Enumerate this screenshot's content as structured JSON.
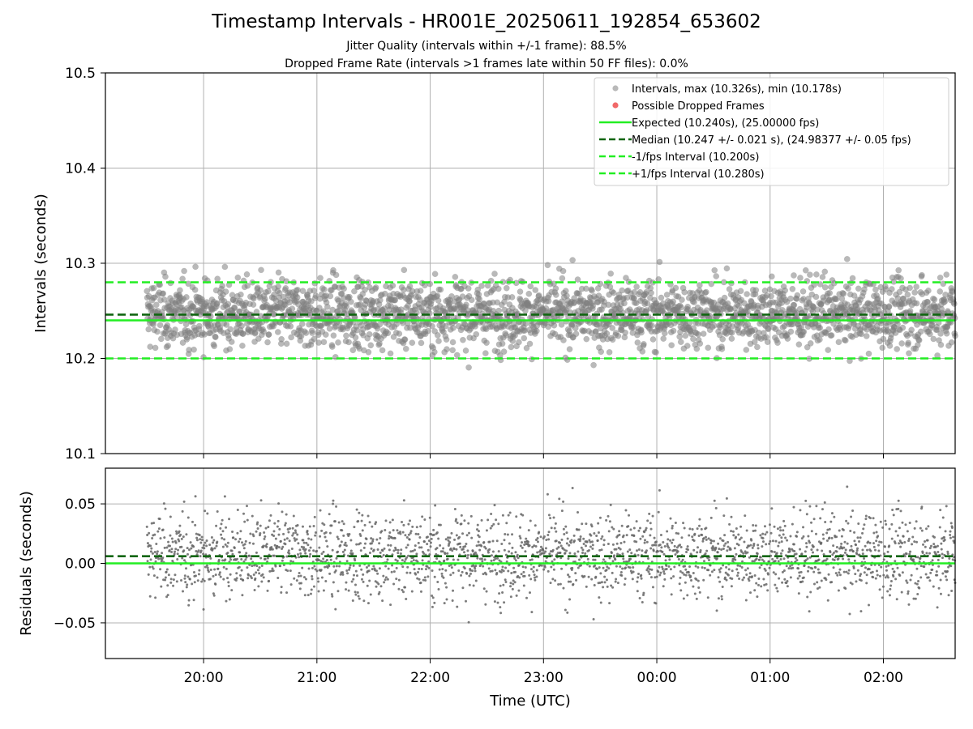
{
  "figure": {
    "title": "Timestamp Intervals - HR001E_20250611_192854_653602",
    "subtitle_1": "Jitter Quality (intervals within +/-1 frame): 88.5%",
    "subtitle_2": "Dropped Frame Rate (intervals >1 frames late within 50 FF files): 0.0%"
  },
  "colors": {
    "points": "#808080",
    "dropped": "#ee4444",
    "expected": "#22ee22",
    "median": "#116611",
    "bounds": "#22ee22",
    "grid": "#b0b0b0"
  },
  "chart_data": [
    {
      "type": "scatter",
      "panel": "intervals",
      "xlabel": "",
      "ylabel": "Intervals (seconds)",
      "xlim": [
        "19:08",
        "02:38"
      ],
      "ylim": [
        10.1,
        10.5
      ],
      "yticks": [
        10.1,
        10.2,
        10.3,
        10.4,
        10.5
      ],
      "ytick_labels": [
        "10.1",
        "10.2",
        "10.3",
        "10.4",
        "10.5"
      ],
      "xticks": [
        "20:00",
        "21:00",
        "22:00",
        "23:00",
        "00:00",
        "01:00",
        "02:00"
      ],
      "grid": true,
      "legend_position": "top-right",
      "legend": [
        "Intervals, max (10.326s), min (10.178s)",
        "Possible Dropped Frames",
        "Expected (10.240s), (25.00000 fps)",
        "Median (10.247 +/- 0.021 s), (24.98377 +/- 0.05 fps)",
        "-1/fps Interval (10.200s)",
        "+1/fps Interval (10.280s)"
      ],
      "series": [
        {
          "name": "Intervals, max (10.326s), min (10.178s)",
          "kind": "points",
          "x_start": "19:30",
          "x_end": "02:38",
          "approx_count": 2500,
          "center": 10.247,
          "spread": 0.021,
          "max": 10.326,
          "min": 10.178
        },
        {
          "name": "Possible Dropped Frames",
          "kind": "points",
          "count": 0
        },
        {
          "name": "Expected (10.240s), (25.00000 fps)",
          "kind": "hline",
          "y": 10.24
        },
        {
          "name": "Median (10.247 +/- 0.021 s), (24.98377 +/- 0.05 fps)",
          "kind": "hline",
          "y": 10.246
        },
        {
          "name": "-1/fps Interval (10.200s)",
          "kind": "hline",
          "y": 10.2
        },
        {
          "name": "+1/fps Interval (10.280s)",
          "kind": "hline",
          "y": 10.28
        }
      ]
    },
    {
      "type": "scatter",
      "panel": "residuals",
      "xlabel": "Time (UTC)",
      "ylabel": "Residuals (seconds)",
      "xlim": [
        "19:08",
        "02:38"
      ],
      "ylim": [
        -0.08,
        0.08
      ],
      "yticks": [
        -0.05,
        0.0,
        0.05
      ],
      "ytick_labels": [
        "−0.05",
        "0.00",
        "0.05"
      ],
      "xticks": [
        "20:00",
        "21:00",
        "22:00",
        "23:00",
        "00:00",
        "01:00",
        "02:00"
      ],
      "grid": true,
      "series": [
        {
          "name": "residuals",
          "kind": "points",
          "approx_count": 2500,
          "center": 0.007,
          "spread": 0.021
        },
        {
          "name": "expected",
          "kind": "hline",
          "y": 0.0
        },
        {
          "name": "median",
          "kind": "hline",
          "y": 0.006
        }
      ]
    }
  ]
}
